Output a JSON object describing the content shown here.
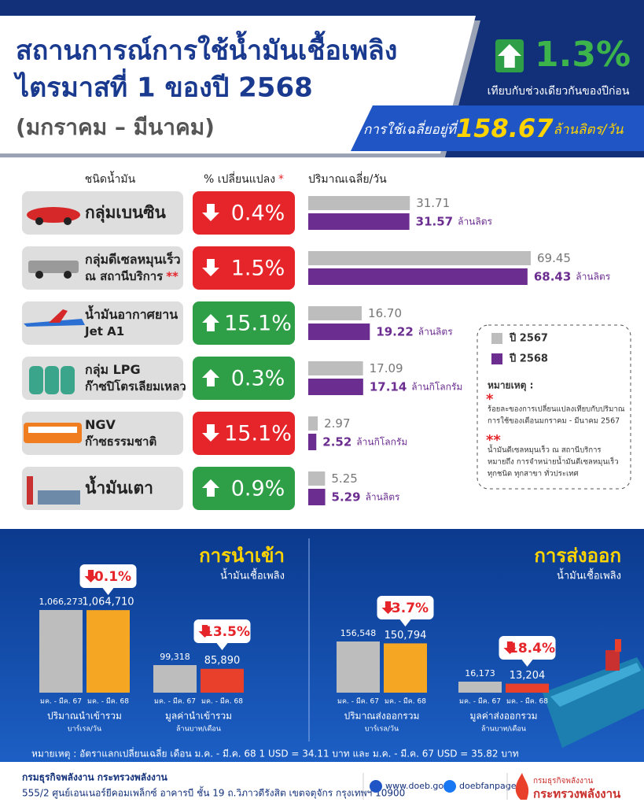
{
  "header": {
    "title_lines": [
      "สถานการณ์การใช้น้ำมันเชื้อเพลิง",
      "ไตรมาสที่ 1 ของปี 2568"
    ],
    "period": "(มกราคม – มีนาคม)",
    "change": "1.3%",
    "change_direction": "up",
    "change_note": "เทียบกับช่วงเดียวกันของปีก่อน",
    "average_prefix": "การใช้เฉลี่ยอยู่ที่",
    "average_value": "158.67",
    "average_unit": "ล้านลิตร/วัน"
  },
  "fuel_table": {
    "columns": [
      "ชนิดน้ำมัน",
      "% เปลี่ยนแปลง",
      "ปริมาณเฉลี่ย/วัน"
    ],
    "column_mark": "*",
    "series": [
      {
        "name": "ปี 2567",
        "color": "#bdbdbd"
      },
      {
        "name": "ปี 2568",
        "color": "#6b2d90"
      }
    ],
    "rows": [
      {
        "name_lines": [
          "กลุ่มเบนซิน"
        ],
        "change": "0.4%",
        "direction": "down",
        "values": [
          31.71,
          31.57
        ],
        "unit": "ล้านลิตร"
      },
      {
        "name_lines": [
          "กลุ่มดีเซลหมุนเร็ว",
          "ณ สถานีบริการ"
        ],
        "name_mark": "**",
        "change": "1.5%",
        "direction": "down",
        "values": [
          69.45,
          68.43
        ],
        "unit": "ล้านลิตร"
      },
      {
        "name_lines": [
          "น้ำมันอากาศยาน",
          "Jet A1"
        ],
        "change": "15.1%",
        "direction": "up",
        "values": [
          16.7,
          19.22
        ],
        "value_labels": [
          "16.70",
          "19.22"
        ],
        "unit": "ล้านลิตร"
      },
      {
        "name_lines": [
          "กลุ่ม LPG",
          "ก๊าซปิโตรเลียมเหลว"
        ],
        "change": "0.3%",
        "direction": "up",
        "values": [
          17.09,
          17.14
        ],
        "unit": "ล้านกิโลกรัม"
      },
      {
        "name_lines": [
          "NGV",
          "ก๊าซธรรมชาติ"
        ],
        "change": "15.1%",
        "direction": "down",
        "values": [
          2.97,
          2.52
        ],
        "unit": "ล้านกิโลกรัม"
      },
      {
        "name_lines": [
          "น้ำมันเตา"
        ],
        "change": "0.9%",
        "direction": "up",
        "values": [
          5.25,
          5.29
        ],
        "unit": "ล้านลิตร"
      }
    ]
  },
  "notes": {
    "title": "หมายเหตุ :",
    "items": [
      {
        "mark": "*",
        "lines": [
          "ร้อยละของการเปลี่ยนแปลงเทียบกับปริมาณ",
          "การใช้ของเดือนมกราคม - มีนาคม 2567"
        ]
      },
      {
        "mark": "**",
        "lines": [
          "น้ำมันดีเซลหมุนเร็ว ณ สถานีบริการ",
          "หมายถึง การจำหน่ายน้ำมันดีเซลหมุนเร็ว",
          "ทุกชนิด ทุกสาขา ทั่วประเทศ"
        ]
      }
    ]
  },
  "trade": {
    "sections": [
      {
        "title": "การนำเข้า",
        "subtitle": "น้ำมันเชื้อเพลิง",
        "groups": [
          {
            "label": "ปริมาณนำเข้ารวม",
            "unit": "บาร์เรล/วัน",
            "change": "0.1%",
            "direction": "down",
            "categories": [
              "มค. - มีค. 67",
              "มค. - มีค. 68"
            ],
            "values": [
              1066273,
              1064710
            ],
            "value_labels": [
              "1,066,273",
              "1,064,710"
            ],
            "colors": [
              "#bdbdbd",
              "#f5a623"
            ]
          },
          {
            "label": "มูลค่านำเข้ารวม",
            "unit": "ล้านบาท/เดือน",
            "change": "13.5%",
            "direction": "down",
            "categories": [
              "มค. - มีค. 67",
              "มค. - มีค. 68"
            ],
            "values": [
              99318,
              85890
            ],
            "value_labels": [
              "99,318",
              "85,890"
            ],
            "colors": [
              "#bdbdbd",
              "#e8402a"
            ]
          }
        ]
      },
      {
        "title": "การส่งออก",
        "subtitle": "น้ำมันเชื้อเพลิง",
        "groups": [
          {
            "label": "ปริมาณส่งออกรวม",
            "unit": "บาร์เรล/วัน",
            "change": "3.7%",
            "direction": "down",
            "categories": [
              "มค. - มีค. 67",
              "มค. - มีค. 68"
            ],
            "values": [
              156548,
              150794
            ],
            "value_labels": [
              "156,548",
              "150,794"
            ],
            "colors": [
              "#bdbdbd",
              "#f5a623"
            ]
          },
          {
            "label": "มูลค่าส่งออกรวม",
            "unit": "ล้านบาท/เดือน",
            "change": "18.4%",
            "direction": "down",
            "categories": [
              "มค. - มีค. 67",
              "มค. - มีค. 68"
            ],
            "values": [
              16173,
              13204
            ],
            "value_labels": [
              "16,173",
              "13,204"
            ],
            "colors": [
              "#bdbdbd",
              "#e8402a"
            ]
          }
        ]
      }
    ],
    "footnote": "หมายเหตุ : อัตราแลกเปลี่ยนเฉลี่ย เดือน ม.ค. - มี.ค. 68 1 USD = 34.11 บาท และ ม.ค. - มี.ค. 67 USD = 35.82 บาท"
  },
  "footer": {
    "org": "กรมธุรกิจพลังงาน กระทรวงพลังงาน",
    "address": "555/2 ศูนย์เอนเนอร์ยีคอมเพล็กซ์ อาคารบี ชั้น 19 ถ.วิภาวดีรังสิต เขตจตุจักร กรุงเทพฯ 10900",
    "website": "www.doeb.go.th",
    "facebook": "doebfanpage",
    "logo_lines": [
      "กรมธุรกิจพลังงาน",
      "กระทรวงพลังงาน"
    ]
  }
}
